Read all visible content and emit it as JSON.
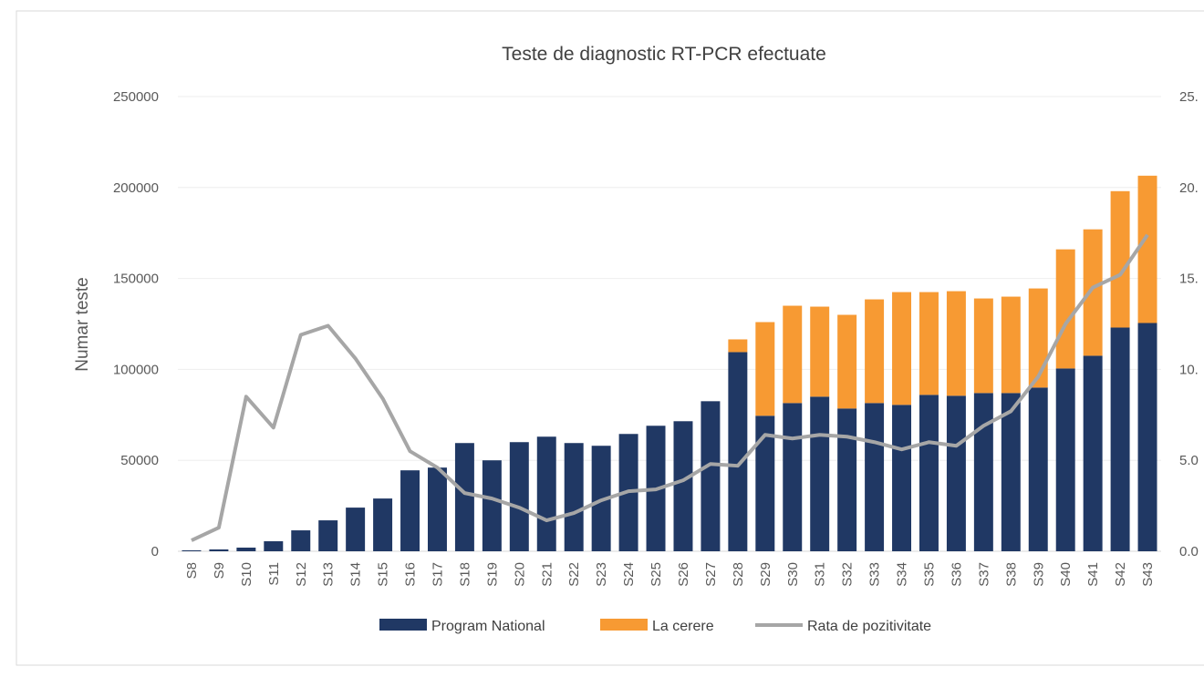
{
  "chart_data": {
    "type": "bar+line",
    "title": "Teste de diagnostic RT-PCR efectuate",
    "ylabel": "Numar teste",
    "ylabel_right": "",
    "ylim": [
      0,
      250000
    ],
    "ylim_right": [
      0,
      25
    ],
    "yticks": [
      "0",
      "50000",
      "100000",
      "150000",
      "200000",
      "250000"
    ],
    "yticks_right": [
      "0.0",
      "5.0",
      "10.",
      "15.",
      "20.",
      "25."
    ],
    "grid": true,
    "legend_position": "bottom",
    "categories": [
      "S8",
      "S9",
      "S10",
      "S11",
      "S12",
      "S13",
      "S14",
      "S15",
      "S16",
      "S17",
      "S18",
      "S19",
      "S20",
      "S21",
      "S22",
      "S23",
      "S24",
      "S25",
      "S26",
      "S27",
      "S28",
      "S29",
      "S30",
      "S31",
      "S32",
      "S33",
      "S34",
      "S35",
      "S36",
      "S37",
      "S38",
      "S39",
      "S40",
      "S41",
      "S42",
      "S43"
    ],
    "series": [
      {
        "name": "Program National",
        "type": "bar",
        "stacked": true,
        "axis": "left",
        "color": "#203864",
        "values": [
          500,
          1000,
          2000,
          5500,
          11500,
          17000,
          24000,
          29000,
          44500,
          46000,
          59500,
          50000,
          60000,
          63000,
          59500,
          58000,
          64500,
          69000,
          71500,
          82500,
          109500,
          74500,
          81500,
          85000,
          78500,
          81500,
          80500,
          86000,
          85500,
          87000,
          87000,
          90000,
          100500,
          107500,
          123000,
          125500
        ]
      },
      {
        "name": "La cerere",
        "type": "bar",
        "stacked": true,
        "axis": "left",
        "color": "#F79A33",
        "values": [
          0,
          0,
          0,
          0,
          0,
          0,
          0,
          0,
          0,
          0,
          0,
          0,
          0,
          0,
          0,
          0,
          0,
          0,
          0,
          0,
          7000,
          51500,
          53500,
          49500,
          51500,
          57000,
          62000,
          56500,
          57500,
          52000,
          53000,
          54500,
          65500,
          69500,
          75000,
          81000
        ]
      },
      {
        "name": "Rata de pozitivitate",
        "type": "line",
        "axis": "right",
        "color": "#A6A6A6",
        "values": [
          0.6,
          1.3,
          8.5,
          6.8,
          11.9,
          12.4,
          10.6,
          8.4,
          5.5,
          4.6,
          3.2,
          2.9,
          2.4,
          1.7,
          2.1,
          2.8,
          3.3,
          3.4,
          3.9,
          4.8,
          4.7,
          6.4,
          6.2,
          6.4,
          6.3,
          6.0,
          5.6,
          6.0,
          5.8,
          6.9,
          7.7,
          9.6,
          12.5,
          14.5,
          15.2,
          17.4
        ]
      }
    ]
  }
}
